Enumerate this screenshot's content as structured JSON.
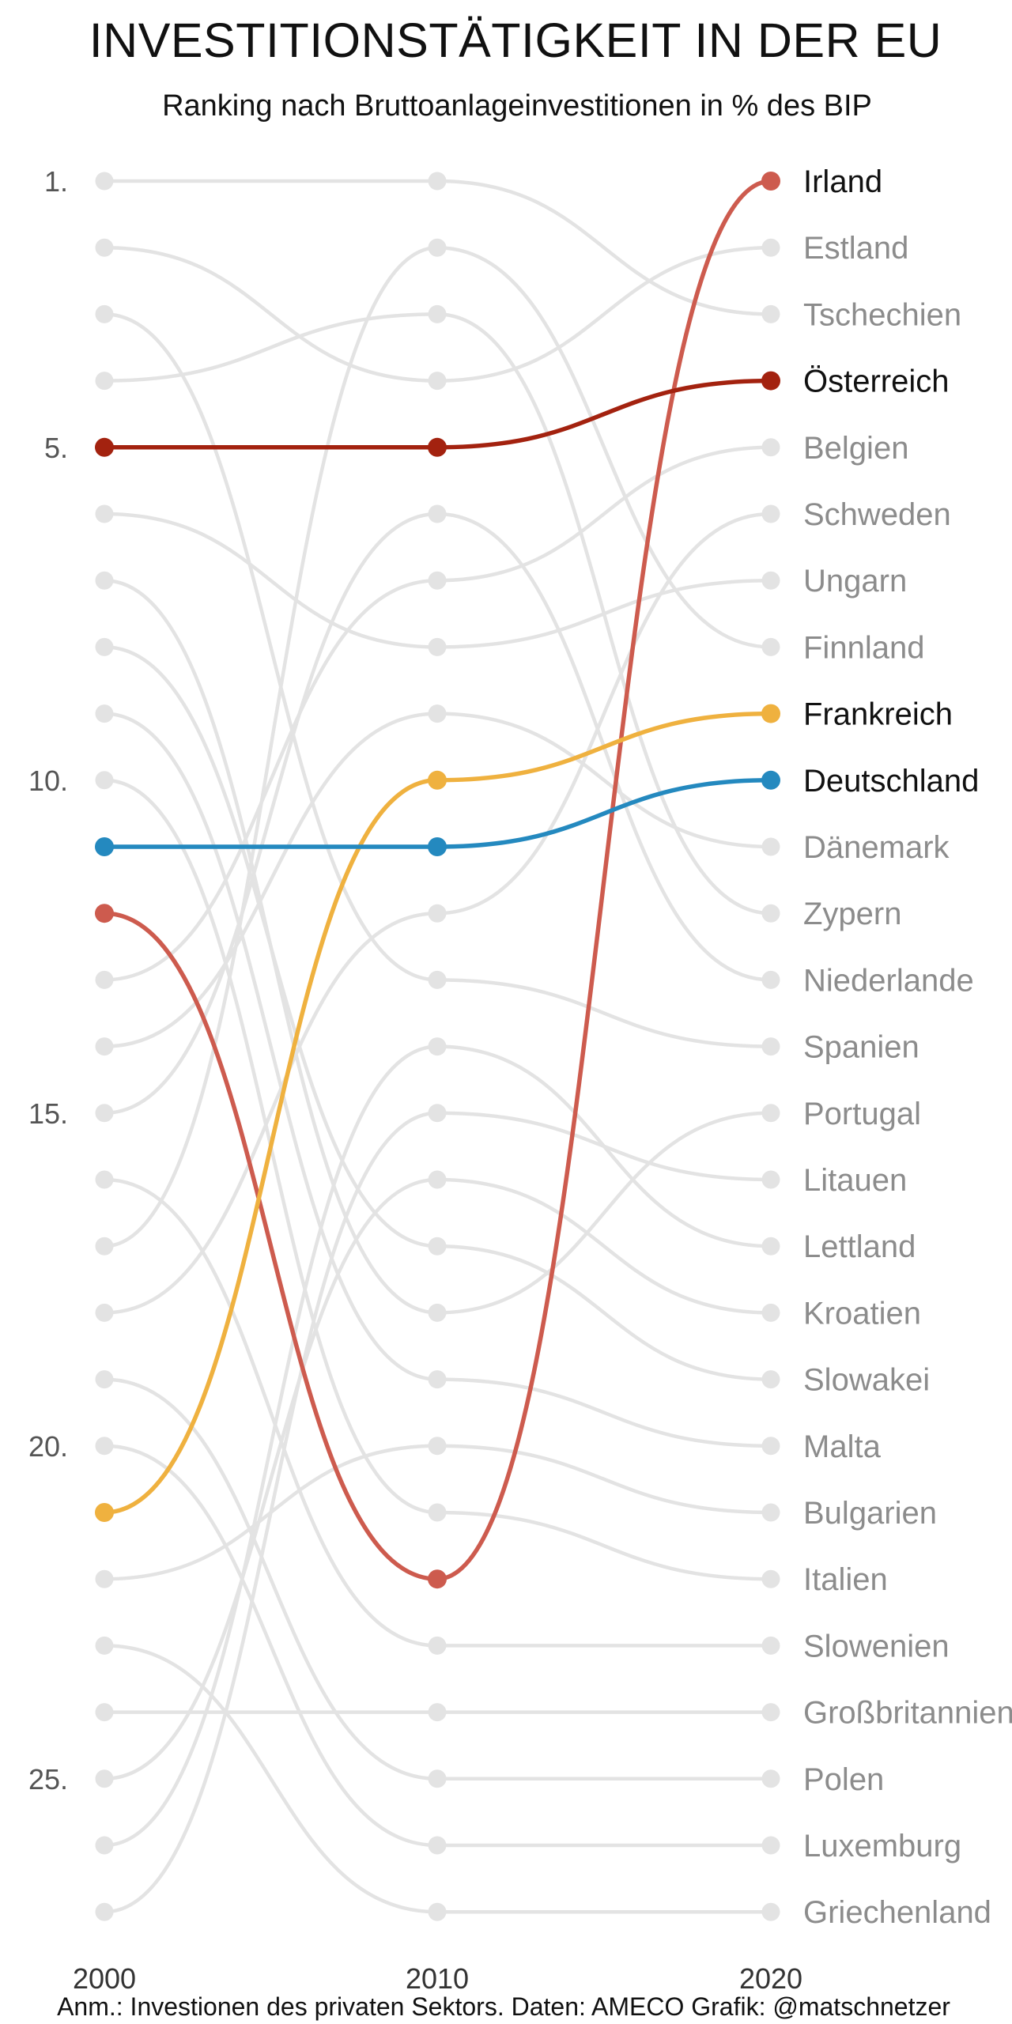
{
  "title": "INVESTITIONSTÄTIGKEIT IN DER EU",
  "subtitle": "Ranking nach Bruttoanlageinvestitionen in % des BIP",
  "footnote": "Anm.: Investionen des privaten Sektors. Daten: AMECO Grafik: @matschnetzer",
  "colors": {
    "background": "#ffffff",
    "muted_line": "#e3e3e3",
    "muted_dot": "#e3e3e3",
    "muted_label": "#8c8c8c",
    "highlight_label": "#111111",
    "Irland": "#cd5b4e",
    "Österreich": "#a3220f",
    "Frankreich": "#efb13f",
    "Deutschland": "#2489bf"
  },
  "chart_data": {
    "type": "line",
    "subtype": "bump",
    "title": "INVESTITIONSTÄTIGKEIT IN DER EU",
    "subtitle": "Ranking nach Bruttoanlageinvestitionen in % des BIP",
    "x": [
      "2000",
      "2010",
      "2020"
    ],
    "y_ticks": [
      "1.",
      "5.",
      "10.",
      "15.",
      "20.",
      "25."
    ],
    "y_tick_values": [
      1,
      5,
      10,
      15,
      20,
      25
    ],
    "ylim": [
      1,
      27
    ],
    "y_reversed": true,
    "grid": false,
    "legend": "direct labels at right",
    "highlighted": [
      "Irland",
      "Österreich",
      "Frankreich",
      "Deutschland"
    ],
    "countries_2020_order": [
      "Irland",
      "Estland",
      "Tschechien",
      "Österreich",
      "Belgien",
      "Schweden",
      "Ungarn",
      "Finnland",
      "Frankreich",
      "Deutschland",
      "Dänemark",
      "Zypern",
      "Niederlande",
      "Spanien",
      "Portugal",
      "Litauen",
      "Lettland",
      "Kroatien",
      "Slowakei",
      "Malta",
      "Bulgarien",
      "Italien",
      "Slowenien",
      "Großbritannien",
      "Polen",
      "Luxemburg",
      "Griechenland"
    ],
    "series": [
      {
        "name": "Irland",
        "values": [
          12,
          22,
          1
        ]
      },
      {
        "name": "Estland",
        "values": [
          2,
          4,
          2
        ]
      },
      {
        "name": "Tschechien",
        "values": [
          1,
          1,
          3
        ]
      },
      {
        "name": "Österreich",
        "values": [
          5,
          5,
          4
        ]
      },
      {
        "name": "Belgien",
        "values": [
          13,
          7,
          5
        ]
      },
      {
        "name": "Schweden",
        "values": [
          18,
          12,
          6
        ]
      },
      {
        "name": "Ungarn",
        "values": [
          6,
          8,
          7
        ]
      },
      {
        "name": "Finnland",
        "values": [
          17,
          2,
          8
        ]
      },
      {
        "name": "Frankreich",
        "values": [
          21,
          10,
          9
        ]
      },
      {
        "name": "Deutschland",
        "values": [
          11,
          11,
          10
        ]
      },
      {
        "name": "Dänemark",
        "values": [
          14,
          9,
          11
        ]
      },
      {
        "name": "Zypern",
        "values": [
          4,
          3,
          12
        ]
      },
      {
        "name": "Niederlande",
        "values": [
          15,
          6,
          13
        ]
      },
      {
        "name": "Spanien",
        "values": [
          3,
          13,
          14
        ]
      },
      {
        "name": "Portugal",
        "values": [
          7,
          18,
          15
        ]
      },
      {
        "name": "Litauen",
        "values": [
          27,
          15,
          16
        ]
      },
      {
        "name": "Lettland",
        "values": [
          26,
          14,
          17
        ]
      },
      {
        "name": "Kroatien",
        "values": [
          25,
          16,
          18
        ]
      },
      {
        "name": "Slowakei",
        "values": [
          8,
          17,
          19
        ]
      },
      {
        "name": "Malta",
        "values": [
          9,
          19,
          20
        ]
      },
      {
        "name": "Bulgarien",
        "values": [
          22,
          20,
          21
        ]
      },
      {
        "name": "Italien",
        "values": [
          10,
          21,
          22
        ]
      },
      {
        "name": "Slowenien",
        "values": [
          16,
          23,
          23
        ]
      },
      {
        "name": "Großbritannien",
        "values": [
          24,
          24,
          24
        ]
      },
      {
        "name": "Polen",
        "values": [
          19,
          25,
          25
        ]
      },
      {
        "name": "Luxemburg",
        "values": [
          20,
          26,
          26
        ]
      },
      {
        "name": "Griechenland",
        "values": [
          23,
          27,
          27
        ]
      }
    ]
  }
}
